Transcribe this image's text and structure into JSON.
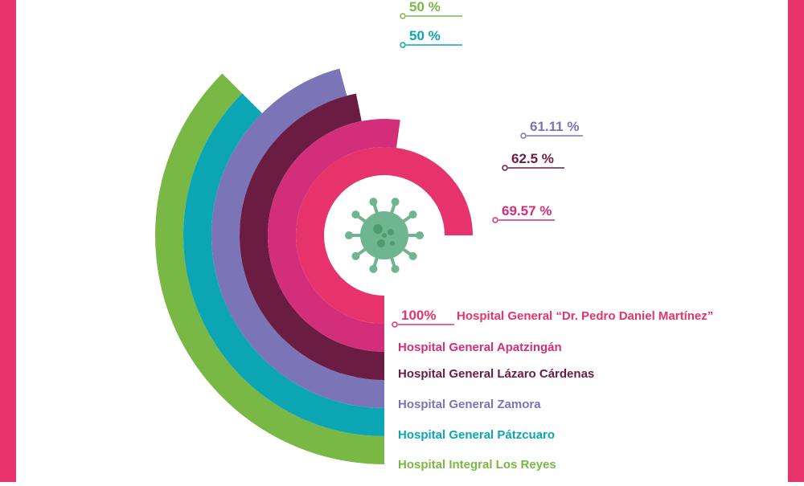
{
  "chart_data": {
    "type": "radial-bar",
    "unit": "%",
    "value_range": [
      0,
      100
    ],
    "series": [
      {
        "label": "Hospital General “Dr. Pedro Daniel Martínez”",
        "value": 100,
        "value_label": "100%",
        "color": "#E6336B"
      },
      {
        "label": "Hospital General Apatzingán",
        "value": 69.57,
        "value_label": "69.57 %",
        "color": "#D22E79"
      },
      {
        "label": "Hospital General Lázaro Cárdenas",
        "value": 62.5,
        "value_label": "62.5 %",
        "color": "#6A1C43"
      },
      {
        "label": "Hospital General Zamora",
        "value": 61.11,
        "value_label": "61.11 %",
        "color": "#7B74B7"
      },
      {
        "label": "Hospital General Pátzcuaro",
        "value": 50,
        "value_label": "50 %",
        "color": "#0BA5B4"
      },
      {
        "label": "Hospital Integral Los Reyes",
        "value": 50,
        "value_label": "50 %",
        "color": "#79B845"
      }
    ]
  },
  "theme": {
    "frame_color": "#E6336B",
    "background": "#FFFFFF",
    "virus_icon_color": "#6FB58F"
  }
}
